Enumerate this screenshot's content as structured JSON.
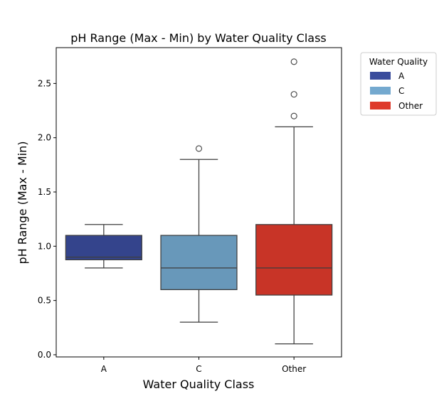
{
  "chart_data": {
    "type": "box",
    "title": "pH Range (Max - Min) by Water Quality Class",
    "xlabel": "Water Quality Class",
    "ylabel": "pH Range (Max - Min)",
    "ylim": [
      -0.02,
      2.83
    ],
    "yticks": [
      0.0,
      0.5,
      1.0,
      1.5,
      2.0,
      2.5
    ],
    "ytick_labels": [
      "0.0",
      "0.5",
      "1.0",
      "1.5",
      "2.0",
      "2.5"
    ],
    "categories": [
      "A",
      "C",
      "Other"
    ],
    "boxes": [
      {
        "category": "A",
        "whislo": 0.8,
        "q1": 0.875,
        "median": 0.9,
        "q3": 1.1,
        "whishi": 1.2,
        "fliers": [],
        "color": "#3a4c9c"
      },
      {
        "category": "C",
        "whislo": 0.3,
        "q1": 0.6,
        "median": 0.8,
        "q3": 1.1,
        "whishi": 1.8,
        "fliers": [
          1.9
        ],
        "color": "#74a9cf"
      },
      {
        "category": "Other",
        "whislo": 0.1,
        "q1": 0.55,
        "median": 0.8,
        "q3": 1.2,
        "whishi": 2.1,
        "fliers": [
          2.2,
          2.4,
          2.7
        ],
        "color": "#de3a2b"
      }
    ],
    "grid": false,
    "legend": {
      "title": "Water Quality",
      "placement": "outside-top-right",
      "entries": [
        {
          "label": "A",
          "color": "#3a4c9c"
        },
        {
          "label": "C",
          "color": "#74a9cf"
        },
        {
          "label": "Other",
          "color": "#de3a2b"
        }
      ]
    }
  }
}
